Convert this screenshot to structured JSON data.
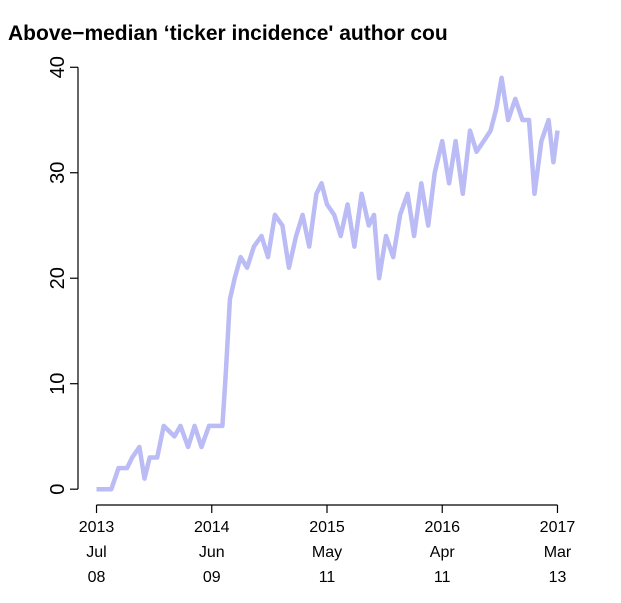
{
  "chart_data": {
    "type": "line",
    "title": "Above−median ‘ticker incidence' author cou",
    "x": [
      "2013-07-08",
      "2013-08-20",
      "2013-09-10",
      "2013-10-05",
      "2013-10-20",
      "2013-11-10",
      "2013-11-25",
      "2013-12-10",
      "2014-01-01",
      "2014-01-20",
      "2014-02-20",
      "2014-03-10",
      "2014-04-01",
      "2014-04-20",
      "2014-05-10",
      "2014-06-01",
      "2014-06-09",
      "2014-07-10",
      "2014-07-20",
      "2014-08-01",
      "2014-08-15",
      "2014-09-01",
      "2014-09-20",
      "2014-10-10",
      "2014-11-01",
      "2014-11-20",
      "2014-12-10",
      "2015-01-01",
      "2015-01-20",
      "2015-02-10",
      "2015-03-01",
      "2015-03-20",
      "2015-04-10",
      "2015-04-25",
      "2015-05-11",
      "2015-06-01",
      "2015-06-20",
      "2015-07-10",
      "2015-07-30",
      "2015-08-20",
      "2015-09-10",
      "2015-09-25",
      "2015-10-10",
      "2015-10-30",
      "2015-11-20",
      "2015-12-10",
      "2016-01-01",
      "2016-01-20",
      "2016-02-10",
      "2016-03-01",
      "2016-03-20",
      "2016-04-11",
      "2016-05-01",
      "2016-05-20",
      "2016-06-10",
      "2016-07-01",
      "2016-07-20",
      "2016-08-10",
      "2016-08-30",
      "2016-09-15",
      "2016-10-01",
      "2016-10-20",
      "2016-11-10",
      "2016-12-01",
      "2016-12-20",
      "2017-01-05",
      "2017-01-25",
      "2017-02-15",
      "2017-03-01",
      "2017-03-13"
    ],
    "series": [
      {
        "color": "#bbbbf5",
        "values": [
          0,
          0,
          2,
          2,
          3,
          4,
          1,
          3,
          3,
          6,
          5,
          6,
          4,
          6,
          4,
          6,
          6,
          6,
          11,
          18,
          20,
          22,
          21,
          23,
          24,
          22,
          26,
          25,
          21,
          24,
          26,
          23,
          28,
          29,
          27,
          26,
          24,
          27,
          23,
          28,
          25,
          26,
          20,
          24,
          22,
          26,
          28,
          24,
          29,
          25,
          30,
          33,
          29,
          33,
          28,
          34,
          32,
          33,
          34,
          36,
          39,
          35,
          37,
          35,
          35,
          28,
          33,
          35,
          31,
          34
        ]
      }
    ],
    "xlim": [
      "2013-05-15",
      "2017-05-06"
    ],
    "xticks": [
      {
        "value": "2013-07-08",
        "label": [
          "2013",
          "Jul",
          "08"
        ]
      },
      {
        "value": "2014-06-09",
        "label": [
          "2014",
          "Jun",
          "09"
        ]
      },
      {
        "value": "2015-05-11",
        "label": [
          "2015",
          "May",
          "11"
        ]
      },
      {
        "value": "2016-04-11",
        "label": [
          "2016",
          "Apr",
          "11"
        ]
      },
      {
        "value": "2017-03-13",
        "label": [
          "2017",
          "Mar",
          "13"
        ]
      }
    ],
    "ylim": [
      -1.5,
      40.5
    ],
    "yticks": [
      0,
      10,
      20,
      30,
      40
    ]
  }
}
